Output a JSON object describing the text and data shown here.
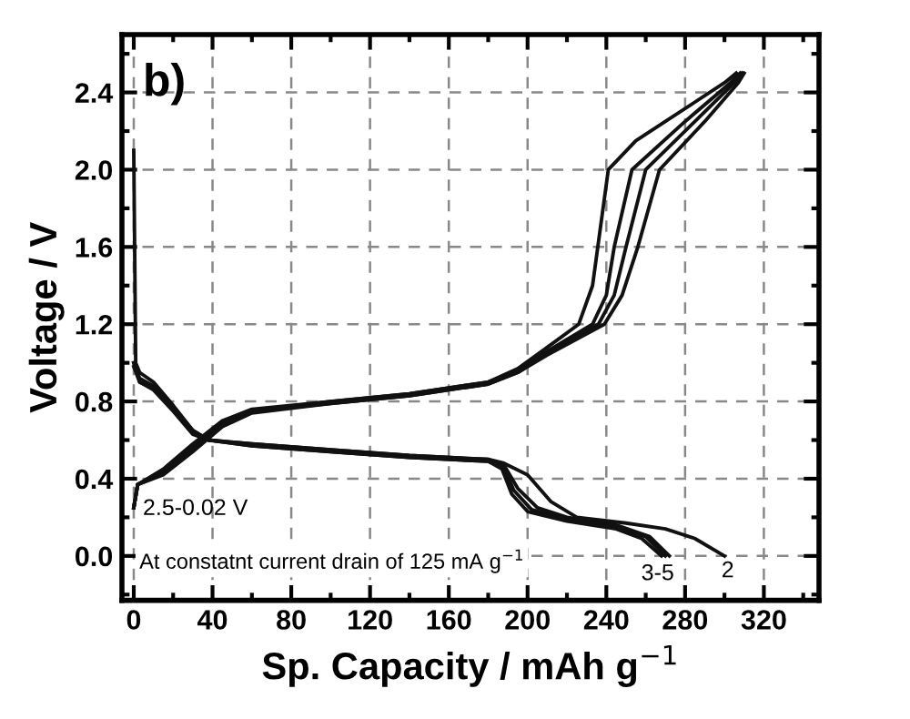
{
  "chart_data": {
    "type": "line",
    "xlabel": "Sp. Capacity / mAh g$^{−1}$",
    "ylabel": "Voltage / V",
    "xlim": [
      -6,
      348
    ],
    "ylim": [
      -0.23,
      2.7
    ],
    "xticks": [
      0,
      40,
      80,
      120,
      160,
      200,
      240,
      280,
      320
    ],
    "yticks": [
      {
        "value": 0,
        "label": "0.0"
      },
      {
        "value": 0.4,
        "label": "0.4"
      },
      {
        "value": 0.8,
        "label": "0.8"
      },
      {
        "value": 1.2,
        "label": "1.2"
      },
      {
        "value": 1.6,
        "label": "1.6"
      },
      {
        "value": 2.0,
        "label": "2.0"
      },
      {
        "value": 2.4,
        "label": "2.4"
      }
    ],
    "grid": true,
    "marker": "none",
    "line_style": "solid",
    "series": [
      {
        "color": "#111111",
        "x": [
          0,
          1,
          3,
          10,
          20,
          30,
          38,
          60,
          100,
          140,
          180,
          188,
          200,
          212,
          225,
          250,
          270,
          285,
          300
        ],
        "values": [
          2.1,
          1.0,
          0.95,
          0.9,
          0.78,
          0.65,
          0.6,
          0.58,
          0.55,
          0.52,
          0.5,
          0.48,
          0.42,
          0.28,
          0.2,
          0.17,
          0.14,
          0.09,
          0.0
        ]
      },
      {
        "color": "#111111",
        "x": [
          0,
          3,
          10,
          20,
          30,
          38,
          60,
          100,
          140,
          180,
          188,
          195,
          205,
          220,
          245,
          262,
          272
        ],
        "values": [
          1.0,
          0.92,
          0.88,
          0.77,
          0.65,
          0.6,
          0.58,
          0.55,
          0.52,
          0.5,
          0.47,
          0.35,
          0.25,
          0.2,
          0.16,
          0.1,
          0.0
        ]
      },
      {
        "color": "#111111",
        "x": [
          0,
          3,
          10,
          20,
          30,
          38,
          60,
          100,
          140,
          180,
          188,
          193,
          202,
          220,
          245,
          260,
          270
        ],
        "values": [
          1.0,
          0.9,
          0.87,
          0.76,
          0.64,
          0.6,
          0.57,
          0.54,
          0.51,
          0.49,
          0.46,
          0.34,
          0.24,
          0.19,
          0.15,
          0.1,
          0.0
        ]
      },
      {
        "color": "#111111",
        "x": [
          0,
          3,
          10,
          20,
          30,
          38,
          60,
          100,
          140,
          180,
          187,
          192,
          200,
          220,
          245,
          258,
          268
        ],
        "values": [
          0.98,
          0.9,
          0.86,
          0.75,
          0.63,
          0.6,
          0.57,
          0.54,
          0.51,
          0.49,
          0.45,
          0.32,
          0.23,
          0.18,
          0.14,
          0.09,
          0.0
        ]
      },
      {
        "color": "#111111",
        "x": [
          0,
          2,
          15,
          30,
          45,
          60,
          100,
          140,
          180,
          195,
          210,
          226,
          233,
          241,
          255,
          270,
          300,
          306
        ],
        "values": [
          0.25,
          0.37,
          0.45,
          0.58,
          0.7,
          0.76,
          0.8,
          0.84,
          0.9,
          0.97,
          1.08,
          1.2,
          1.4,
          2.0,
          2.15,
          2.25,
          2.45,
          2.5
        ]
      },
      {
        "color": "#111111",
        "x": [
          0,
          2,
          15,
          30,
          45,
          60,
          100,
          140,
          180,
          195,
          210,
          233,
          240,
          244,
          253,
          280,
          303,
          308
        ],
        "values": [
          0.25,
          0.37,
          0.44,
          0.56,
          0.69,
          0.75,
          0.8,
          0.84,
          0.9,
          0.96,
          1.06,
          1.2,
          1.35,
          1.6,
          2.0,
          2.25,
          2.45,
          2.5
        ]
      },
      {
        "color": "#111111",
        "x": [
          0,
          2,
          15,
          30,
          45,
          60,
          100,
          140,
          180,
          195,
          210,
          236,
          244,
          250,
          260,
          285,
          305,
          309
        ],
        "values": [
          0.25,
          0.37,
          0.43,
          0.55,
          0.68,
          0.75,
          0.79,
          0.83,
          0.89,
          0.95,
          1.05,
          1.2,
          1.35,
          1.6,
          2.0,
          2.25,
          2.45,
          2.5
        ]
      },
      {
        "color": "#111111",
        "x": [
          0,
          2,
          15,
          30,
          45,
          60,
          100,
          140,
          180,
          195,
          210,
          239,
          248,
          256,
          267,
          290,
          307,
          310
        ],
        "values": [
          0.25,
          0.37,
          0.42,
          0.54,
          0.67,
          0.74,
          0.79,
          0.83,
          0.89,
          0.95,
          1.04,
          1.2,
          1.35,
          1.6,
          2.0,
          2.25,
          2.45,
          2.5
        ]
      }
    ],
    "annotations": [
      "b)",
      "2.5-0.02 V",
      "At constatnt current drain of 125 mA g$^{−1}$",
      "2",
      "3-5"
    ]
  }
}
